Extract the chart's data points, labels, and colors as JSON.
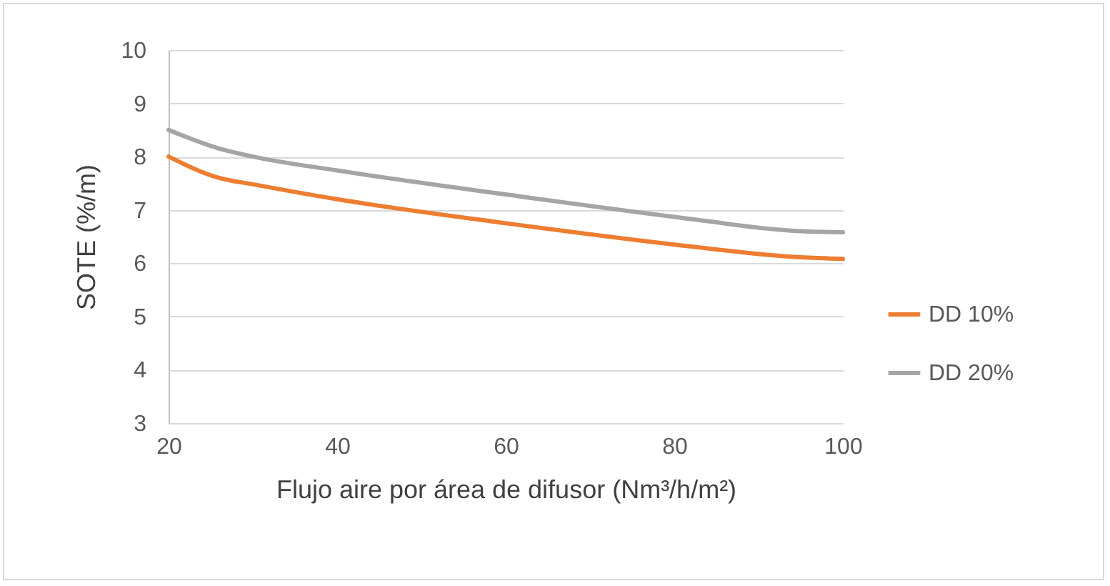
{
  "chart_data": {
    "type": "line",
    "xlabel": "Flujo aire por área de difusor (Nm³/h/m²)",
    "ylabel": "SOTE (%/m)",
    "x": [
      20,
      26,
      30,
      40,
      60,
      80,
      95,
      100
    ],
    "series": [
      {
        "name": "DD 10%",
        "color": "#ed7d31",
        "values": [
          8.0,
          7.6,
          7.48,
          7.2,
          6.75,
          6.35,
          6.11,
          6.08
        ]
      },
      {
        "name": "DD 20%",
        "color": "#a5a5a5",
        "values": [
          8.5,
          8.15,
          8.0,
          7.74,
          7.29,
          6.87,
          6.6,
          6.58
        ]
      }
    ],
    "xlim": [
      20,
      100
    ],
    "xticks": [
      20,
      40,
      60,
      80,
      100
    ],
    "ylim": [
      3,
      10
    ],
    "yticks": [
      3,
      4,
      5,
      6,
      7,
      8,
      9,
      10
    ],
    "grid": "y",
    "legend": "right",
    "marker": "none",
    "line_style": "solid"
  }
}
